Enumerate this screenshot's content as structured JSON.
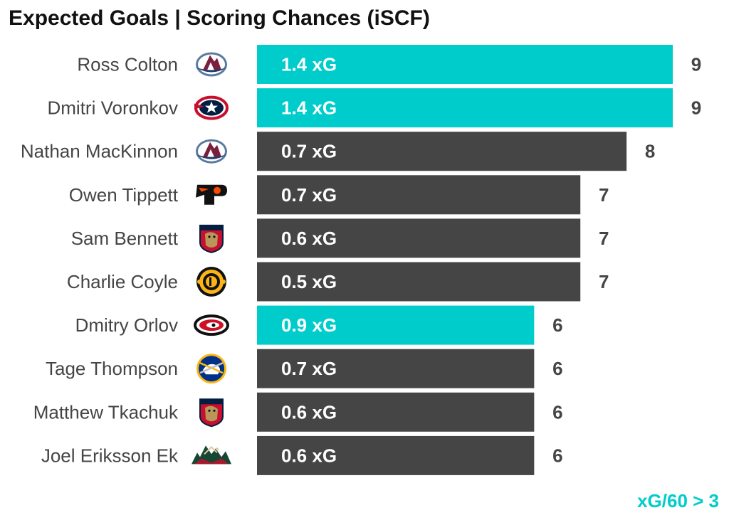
{
  "chart_data": {
    "type": "bar",
    "orientation": "horizontal",
    "title": "Expected Goals | Scoring Chances (iSCF)",
    "categories": [
      "Ross Colton",
      "Dmitri Voronkov",
      "Nathan MacKinnon",
      "Owen Tippett",
      "Sam Bennett",
      "Charlie Coyle",
      "Dmitry Orlov",
      "Tage Thompson",
      "Matthew Tkachuk",
      "Joel Eriksson Ek"
    ],
    "values": [
      9,
      9,
      8,
      7,
      7,
      7,
      6,
      6,
      6,
      6
    ],
    "bar_labels": [
      "1.4 xG",
      "1.4 xG",
      "0.7 xG",
      "0.7 xG",
      "0.6 xG",
      "0.5 xG",
      "0.9 xG",
      "0.7 xG",
      "0.6 xG",
      "0.6 xG"
    ],
    "teams": [
      "avalanche-logo-icon",
      "blue-jackets-logo-icon",
      "avalanche-logo-icon",
      "flyers-logo-icon",
      "panthers-logo-icon",
      "bruins-logo-icon",
      "hurricanes-logo-icon",
      "sabres-logo-icon",
      "panthers-logo-icon",
      "wild-logo-icon"
    ],
    "highlighted": [
      true,
      true,
      false,
      false,
      false,
      false,
      true,
      false,
      false,
      false
    ],
    "xlim": [
      0,
      9
    ],
    "grid": false,
    "legend_note": "xG/60 > 3"
  },
  "colors": {
    "highlight": "#00CCCC",
    "default": "#454545",
    "label_text": "#ffffff",
    "value_text": "#454545",
    "name_text": "#454545"
  }
}
